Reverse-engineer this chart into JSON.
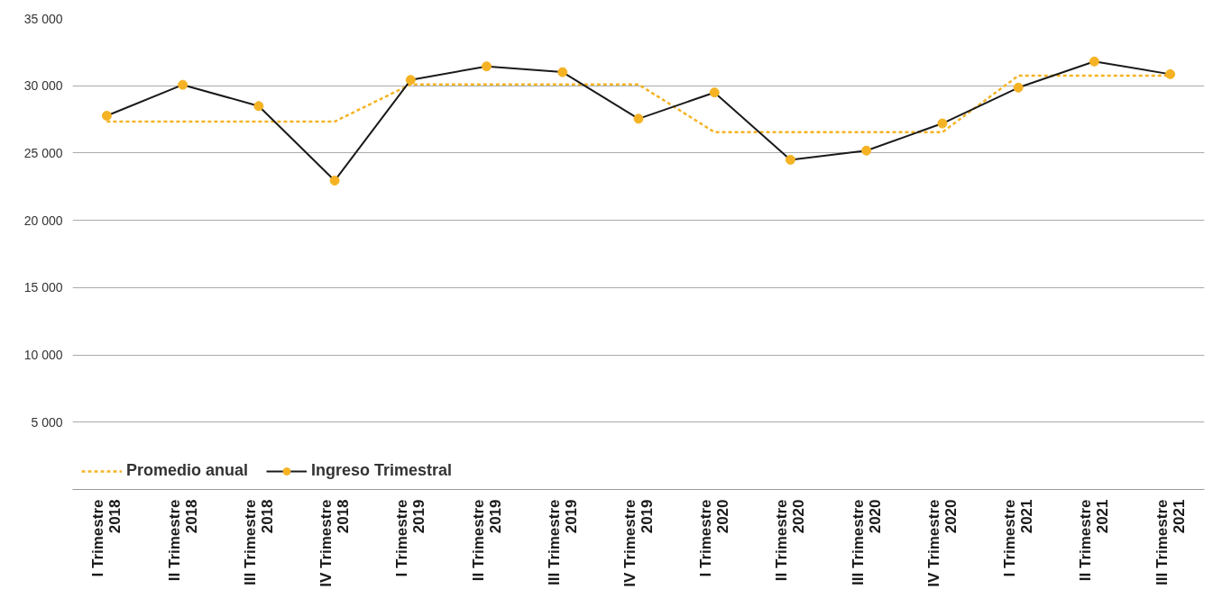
{
  "chart_data": {
    "type": "line",
    "categories": [
      "I Trimestre 2018",
      "II Trimestre 2018",
      "III Trimestre 2018",
      "IV Trimestre 2018",
      "I Trimestre 2019",
      "II Trimestre 2019",
      "III Trimestre 2019",
      "IV Trimestre 2019",
      "I Trimestre 2020",
      "II Trimestre 2020",
      "III Trimestre 2020",
      "IV Trimestre 2020",
      "I Trimestre 2021",
      "II Trimestre 2021",
      "III Trimestre 2021"
    ],
    "series": [
      {
        "name": "Promedio anual",
        "color": "#f5b324",
        "line_style": "dashed",
        "marker": "none",
        "values": [
          27340,
          27340,
          27340,
          27340,
          30100,
          30100,
          30100,
          30100,
          26550,
          26550,
          26550,
          26550,
          30750,
          30750,
          30750
        ]
      },
      {
        "name": "Ingreso Trimestral",
        "color": "#1a1a1a",
        "colors": [
          "#f5b324",
          "#f5b324",
          "#f5b324",
          "#f5b324",
          "#f5b324",
          "#f5b324",
          "#f5b324",
          "#f5b324",
          "#f5b324",
          "#f5b324",
          "#f5b324",
          "#f5b324",
          "#f5b324",
          "#f5b324",
          "#f5b324"
        ],
        "line_style": "solid",
        "marker": "circle",
        "values": [
          27770,
          30070,
          28490,
          22950,
          30430,
          31440,
          31010,
          27550,
          29500,
          24500,
          25180,
          27200,
          29860,
          31800,
          30860
        ]
      }
    ],
    "ylim": [
      0,
      35000
    ],
    "yticks": [
      {
        "value": 5000,
        "label": "5 000"
      },
      {
        "value": 10000,
        "label": "10 000"
      },
      {
        "value": 15000,
        "label": "15 000"
      },
      {
        "value": 20000,
        "label": "20 000"
      },
      {
        "value": 25000,
        "label": "25 000"
      },
      {
        "value": 30000,
        "label": "30 000"
      },
      {
        "value": 35000,
        "label": "35 000"
      }
    ],
    "grid": "y",
    "legend": "bottom left"
  }
}
